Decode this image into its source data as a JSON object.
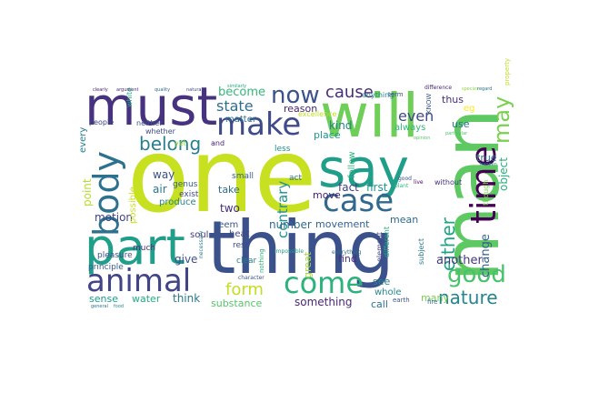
{
  "words": [
    {
      "text": "one",
      "color": "#c7e020"
    },
    {
      "text": "thing",
      "color": "#3b518b"
    },
    {
      "text": "must",
      "color": "#46327e"
    },
    {
      "text": "will",
      "color": "#6ece58"
    },
    {
      "text": "say",
      "color": "#1f9e89"
    },
    {
      "text": "man",
      "color": "#5ec962"
    },
    {
      "text": "part",
      "color": "#1f9e89"
    },
    {
      "text": "animal",
      "color": "#414487"
    },
    {
      "text": "make",
      "color": "#3e4a89"
    },
    {
      "text": "case",
      "color": "#31688e"
    },
    {
      "text": "body",
      "color": "#2c728e"
    },
    {
      "text": "time",
      "color": "#440154"
    },
    {
      "text": "good",
      "color": "#4ac16d"
    },
    {
      "text": "come",
      "color": "#2db27d"
    },
    {
      "text": "now",
      "color": "#3b528b"
    },
    {
      "text": "may",
      "color": "#7ad151"
    },
    {
      "text": "belong",
      "color": "#277f8e"
    },
    {
      "text": "either",
      "color": "#20a486"
    },
    {
      "text": "nature",
      "color": "#25858e"
    },
    {
      "text": "cause",
      "color": "#472d7b"
    },
    {
      "text": "form",
      "color": "#c2df23"
    },
    {
      "text": "state",
      "color": "#2e6e8e"
    },
    {
      "text": "contrary",
      "color": "#21918c"
    },
    {
      "text": "become",
      "color": "#35b779"
    },
    {
      "text": "even",
      "color": "#3e4989"
    },
    {
      "text": "change",
      "color": "#355f8d"
    },
    {
      "text": "another",
      "color": "#453781"
    },
    {
      "text": "object",
      "color": "#29af7f"
    },
    {
      "text": "something",
      "color": "#482878"
    },
    {
      "text": "substance",
      "color": "#52c569"
    },
    {
      "text": "think",
      "color": "#2a788e"
    },
    {
      "text": "sense",
      "color": "#1e9b8a"
    },
    {
      "text": "water",
      "color": "#25ac82"
    },
    {
      "text": "motion",
      "color": "#404688"
    },
    {
      "text": "way",
      "color": "#3b518b"
    },
    {
      "text": "point",
      "color": "#b5de2b"
    },
    {
      "text": "air",
      "color": "#2a768e"
    },
    {
      "text": "give",
      "color": "#3c4f8a"
    },
    {
      "text": "move",
      "color": "#481f70"
    },
    {
      "text": "fact",
      "color": "#433e85"
    },
    {
      "text": "first",
      "color": "#20938c"
    },
    {
      "text": "two",
      "color": "#472c7a"
    },
    {
      "text": "take",
      "color": "#2f6c8e"
    },
    {
      "text": "number",
      "color": "#306a8e"
    },
    {
      "text": "movement",
      "color": "#34618d"
    },
    {
      "text": "mean",
      "color": "#2f6b8e"
    },
    {
      "text": "find",
      "color": "#46337f"
    },
    {
      "text": "place",
      "color": "#1f988b"
    },
    {
      "text": "kind",
      "color": "#25838e"
    },
    {
      "text": "reason",
      "color": "#482475"
    },
    {
      "text": "matter",
      "color": "#2d708e"
    },
    {
      "text": "true",
      "color": "#2a778e"
    },
    {
      "text": "use",
      "color": "#2c738e"
    },
    {
      "text": "thus",
      "color": "#472f7d"
    },
    {
      "text": "always",
      "color": "#31b57b"
    },
    {
      "text": "eg",
      "color": "#fde725"
    },
    {
      "text": "follow",
      "color": "#2db27d"
    },
    {
      "text": "see",
      "color": "#24868e"
    },
    {
      "text": "whole",
      "color": "#23898e"
    },
    {
      "text": "call",
      "color": "#2c728e"
    },
    {
      "text": "many",
      "color": "#7ad151"
    },
    {
      "text": "great",
      "color": "#a5db36"
    },
    {
      "text": "every",
      "color": "#287c8e"
    },
    {
      "text": "possible",
      "color": "#cae11f"
    },
    {
      "text": "produce",
      "color": "#26828e"
    },
    {
      "text": "seem",
      "color": "#38598c"
    },
    {
      "text": "heat",
      "color": "#3f4788"
    },
    {
      "text": "soul",
      "color": "#453781"
    },
    {
      "text": "rest",
      "color": "#3e4c8a"
    },
    {
      "text": "clear",
      "color": "#287d8e"
    },
    {
      "text": "pleasure",
      "color": "#3d4e8a"
    },
    {
      "text": "principle",
      "color": "#375b8d"
    },
    {
      "text": "much",
      "color": "#472e7c"
    },
    {
      "text": "exist",
      "color": "#3d4d8a"
    },
    {
      "text": "genus",
      "color": "#355e8d"
    },
    {
      "text": "small",
      "color": "#34608d"
    },
    {
      "text": "act",
      "color": "#2c718e"
    },
    {
      "text": "less",
      "color": "#21918c"
    },
    {
      "text": "and",
      "color": "#482173"
    },
    {
      "text": "yet",
      "color": "#a0da39"
    },
    {
      "text": "neither",
      "color": "#3a548c"
    },
    {
      "text": "whether",
      "color": "#3d4e8a"
    },
    {
      "text": "people",
      "color": "#3f4889"
    },
    {
      "text": "white",
      "color": "#24aa83"
    },
    {
      "text": "excellence",
      "color": "#bddf26"
    },
    {
      "text": "without",
      "color": "#46327e"
    },
    {
      "text": "different",
      "color": "#21a685"
    },
    {
      "text": "element",
      "color": "#414487"
    },
    {
      "text": "subject",
      "color": "#2a788e"
    },
    {
      "text": "though",
      "color": "#7fd34e"
    },
    {
      "text": "earth",
      "color": "#3b528b"
    },
    {
      "text": "fire",
      "color": "#31688e"
    },
    {
      "text": "anything",
      "color": "#24878e"
    },
    {
      "text": "term",
      "color": "#3e4a89"
    },
    {
      "text": "everything",
      "color": "#2e6f8e"
    },
    {
      "text": "nothing",
      "color": "#2db27d"
    },
    {
      "text": "character",
      "color": "#39568c"
    },
    {
      "text": "impossible",
      "color": "#1f9f88"
    },
    {
      "text": "necessary",
      "color": "#277e8e"
    },
    {
      "text": "KNOW",
      "color": "#3b528b"
    },
    {
      "text": "difference",
      "color": "#482576"
    },
    {
      "text": "property",
      "color": "#bddf26"
    },
    {
      "text": "quality",
      "color": "#2e6d8e"
    },
    {
      "text": "argument",
      "color": "#472a7a"
    },
    {
      "text": "clearly",
      "color": "#482071"
    },
    {
      "text": "similarly",
      "color": "#22a884"
    },
    {
      "text": "plant",
      "color": "#2fb47c"
    },
    {
      "text": "species",
      "color": "#8ed645"
    },
    {
      "text": "particular",
      "color": "#4cc26c"
    },
    {
      "text": "happen",
      "color": "#21908d"
    },
    {
      "text": "live",
      "color": "#46085c"
    },
    {
      "text": "good",
      "color": "#3c4f8a"
    },
    {
      "text": "regard",
      "color": "#2c738e"
    },
    {
      "text": "natural",
      "color": "#3f4889"
    },
    {
      "text": "opinion",
      "color": "#56c667"
    },
    {
      "text": "general",
      "color": "#2a768e"
    },
    {
      "text": "food",
      "color": "#20928c"
    }
  ]
}
